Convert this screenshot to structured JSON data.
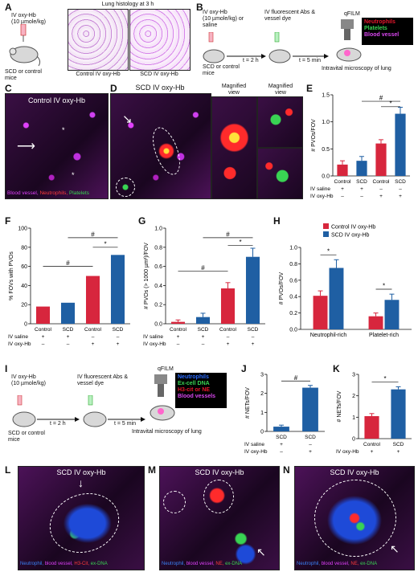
{
  "panels": {
    "A": {
      "label": "A",
      "treatment": "IV oxy-Hb\n(10 µmole/kg)",
      "mice": "SCD or control\nmice",
      "title": "Lung histology at 3 h",
      "img1": "Control IV oxy-Hb",
      "img2": "SCD IV oxy-Hb"
    },
    "B": {
      "label": "B",
      "step1": "IV oxy-Hb\n(10 µmole/kg) or\nsaline",
      "step2": "IV fluorescent Abs &\nvessel dye",
      "mice": "SCD or control\nmice",
      "t1": "t = 2 h",
      "t2": "t = 5 min",
      "method": "qFILM",
      "caption": "Intravital microscopy of lung",
      "legend": [
        "Neutrophils",
        "Platelets",
        "Blood vessel"
      ],
      "legend_colors": [
        "#e5162c",
        "#39d353",
        "#d946ef"
      ]
    },
    "C": {
      "label": "C",
      "title": "Control IV oxy-Hb",
      "caption_parts": [
        "Blood vessel, ",
        "Neutrophils, ",
        "Platelets"
      ],
      "caption_colors": [
        "#e040fb",
        "#ff3b3b",
        "#39d353"
      ]
    },
    "D": {
      "label": "D",
      "title": "SCD IV oxy-Hb",
      "mag1": "Magnified\nview",
      "mag2": "Magnified\nview"
    },
    "I": {
      "label": "I",
      "treatment": "IV oxy-Hb\n(10 µmole/kg)",
      "step2": "IV fluorescent Abs &\nvessel dye",
      "mice": "SCD or control\nmice",
      "t1": "t = 2 h",
      "t2": "t = 5 min",
      "method": "qFILM",
      "caption": "Intravital microscopy of lung",
      "legend": [
        "Neutrophils",
        "Ex-cell DNA",
        "H3-cit or NE",
        "Blood vessels"
      ],
      "legend_colors": [
        "#2a6bff",
        "#39d353",
        "#e5162c",
        "#d946ef"
      ]
    },
    "L": {
      "label": "L",
      "title": "SCD IV  oxy-Hb",
      "caption_parts": [
        "Neutrophil, ",
        "blood vessel, ",
        "H3-Cit, ",
        "ex-DNA"
      ],
      "caption_colors": [
        "#3b82f6",
        "#e040fb",
        "#ff3b3b",
        "#39d353"
      ]
    },
    "M": {
      "label": "M",
      "title": "SCD IV  oxy-Hb",
      "caption_parts": [
        "Neutrophil, ",
        "blood vessel, ",
        "NE, ",
        "ex-DNA"
      ],
      "caption_colors": [
        "#3b82f6",
        "#e040fb",
        "#ff3b3b",
        "#39d353"
      ]
    },
    "N": {
      "label": "N",
      "title": "SCD IV  oxy-Hb",
      "caption_parts": [
        "Neutrophil, ",
        "blood vessel, ",
        "NE, ",
        "ex-DNA"
      ],
      "caption_colors": [
        "#3b82f6",
        "#e040fb",
        "#ff3b3b",
        "#39d353"
      ]
    }
  },
  "chart_data": [
    {
      "id": "E",
      "type": "bar",
      "categories": [
        "Control",
        "SCD",
        "Control",
        "SCD"
      ],
      "row1_label": "IV saline",
      "row1": [
        "+",
        "+",
        "–",
        "–"
      ],
      "row2_label": "IV oxy-Hb",
      "row2": [
        "–",
        "–",
        "+",
        "+"
      ],
      "values": [
        0.21,
        0.28,
        0.6,
        1.15
      ],
      "errors": [
        0.07,
        0.08,
        0.07,
        0.12
      ],
      "colors": [
        "#d7263d",
        "#1f5fa3",
        "#d7263d",
        "#1f5fa3"
      ],
      "ylabel": "# PVOs/FOV",
      "ylim": [
        0,
        1.5
      ],
      "yticks": [
        "0.0",
        "0.5",
        "1.0",
        "1.5"
      ],
      "ytick_values": [
        0,
        0.5,
        1,
        1.5
      ],
      "sig": [
        {
          "from": 1,
          "to": 3,
          "label": "#",
          "level": 1.38
        },
        {
          "from": 2,
          "to": 3,
          "label": "*",
          "level": 1.28
        }
      ]
    },
    {
      "id": "F",
      "type": "bar",
      "categories": [
        "Control",
        "SCD",
        "Control",
        "SCD"
      ],
      "row1_label": "IV saline",
      "row1": [
        "+",
        "+",
        "–",
        "–"
      ],
      "row2_label": "IV oxy-Hb",
      "row2": [
        "–",
        "–",
        "+",
        "+"
      ],
      "values": [
        18,
        22,
        50,
        72
      ],
      "errors": [
        0,
        0,
        0,
        0
      ],
      "colors": [
        "#d7263d",
        "#1f5fa3",
        "#d7263d",
        "#1f5fa3"
      ],
      "ylabel": "% FOVs with PVOs",
      "ylim": [
        0,
        100
      ],
      "yticks": [
        "0",
        "20",
        "40",
        "60",
        "80",
        "100"
      ],
      "ytick_values": [
        0,
        20,
        40,
        60,
        80,
        100
      ],
      "sig": [
        {
          "from": 0,
          "to": 2,
          "label": "#",
          "level": 60
        },
        {
          "from": 1,
          "to": 3,
          "label": "#",
          "level": 90
        },
        {
          "from": 2,
          "to": 3,
          "label": "*",
          "level": 80
        }
      ]
    },
    {
      "id": "G",
      "type": "bar",
      "categories": [
        "Control",
        "SCD",
        "Control",
        "SCD"
      ],
      "row1_label": "IV saline",
      "row1": [
        "+",
        "+",
        "–",
        "–"
      ],
      "row2_label": "IV oxy-Hb",
      "row2": [
        "–",
        "–",
        "+",
        "+"
      ],
      "values": [
        0.02,
        0.07,
        0.37,
        0.7
      ],
      "errors": [
        0.02,
        0.04,
        0.06,
        0.09
      ],
      "colors": [
        "#d7263d",
        "#1f5fa3",
        "#d7263d",
        "#1f5fa3"
      ],
      "ylabel": "# PVOs (> 1000 µm²)/FOV",
      "ylim": [
        0,
        1.0
      ],
      "yticks": [
        "0.0",
        "0.2",
        "0.4",
        "0.6",
        "0.8",
        "1.0"
      ],
      "ytick_values": [
        0,
        0.2,
        0.4,
        0.6,
        0.8,
        1.0
      ],
      "sig": [
        {
          "from": 0,
          "to": 2,
          "label": "#",
          "level": 0.55
        },
        {
          "from": 1,
          "to": 3,
          "label": "#",
          "level": 0.9
        },
        {
          "from": 2,
          "to": 3,
          "label": "*",
          "level": 0.82
        }
      ]
    },
    {
      "id": "H",
      "type": "bar",
      "groups": [
        "Neutrophil-rich",
        "Platelet-rich"
      ],
      "series": [
        {
          "name": "Control IV oxy-Hb",
          "color": "#d7263d",
          "values": [
            0.41,
            0.16
          ],
          "errors": [
            0.06,
            0.04
          ]
        },
        {
          "name": "SCD IV oxy-Hb",
          "color": "#1f5fa3",
          "values": [
            0.75,
            0.36
          ],
          "errors": [
            0.1,
            0.07
          ]
        }
      ],
      "ylabel": "# PVOs/FOV",
      "ylim": [
        0,
        1.0
      ],
      "yticks": [
        "0.0",
        "0.2",
        "0.4",
        "0.6",
        "0.8",
        "1.0"
      ],
      "ytick_values": [
        0,
        0.2,
        0.4,
        0.6,
        0.8,
        1.0
      ],
      "sig_labels": [
        "*",
        "*"
      ]
    },
    {
      "id": "J",
      "type": "bar",
      "categories": [
        "SCD",
        "SCD"
      ],
      "row1_label": "IV saline",
      "row1": [
        "+",
        "–"
      ],
      "row2_label": "IV oxy-Hb",
      "row2": [
        "–",
        "+"
      ],
      "values": [
        0.25,
        2.3
      ],
      "errors": [
        0.08,
        0.12
      ],
      "colors": [
        "#1f5fa3",
        "#1f5fa3"
      ],
      "ylabel": "# NETs/FOV",
      "ylim": [
        0,
        3
      ],
      "yticks": [
        "0",
        "1",
        "2",
        "3"
      ],
      "ytick_values": [
        0,
        1,
        2,
        3
      ],
      "sig": [
        {
          "from": 0,
          "to": 1,
          "label": "#",
          "level": 2.65
        }
      ]
    },
    {
      "id": "K",
      "type": "bar",
      "categories": [
        "Control",
        "SCD"
      ],
      "row1_label": "IV oxy-Hb",
      "row1": [
        "+",
        "+"
      ],
      "values": [
        1.05,
        2.3
      ],
      "errors": [
        0.12,
        0.12
      ],
      "colors": [
        "#d7263d",
        "#1f5fa3"
      ],
      "ylabel": "# NETs/FOV",
      "ylim": [
        0,
        3
      ],
      "yticks": [
        "0",
        "1",
        "2",
        "3"
      ],
      "ytick_values": [
        0,
        1,
        2,
        3
      ],
      "sig": [
        {
          "from": 0,
          "to": 1,
          "label": "*",
          "level": 2.65
        }
      ]
    }
  ]
}
